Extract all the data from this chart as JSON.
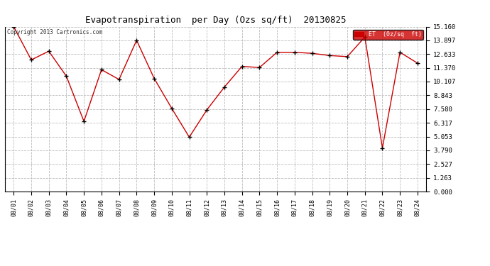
{
  "title": "Evapotranspiration  per Day (Ozs sq/ft)  20130825",
  "copyright": "Copyright 2013 Cartronics.com",
  "legend_label": "ET  (0z/sq  ft)",
  "x_labels": [
    "08/01",
    "08/02",
    "08/03",
    "08/04",
    "08/05",
    "08/06",
    "08/07",
    "08/08",
    "08/09",
    "08/10",
    "08/11",
    "08/12",
    "08/13",
    "08/14",
    "08/15",
    "08/16",
    "08/17",
    "08/18",
    "08/19",
    "08/20",
    "08/21",
    "08/22",
    "08/23",
    "08/24"
  ],
  "y_values": [
    15.16,
    12.1,
    12.9,
    10.6,
    6.45,
    11.2,
    10.3,
    13.9,
    10.4,
    7.65,
    5.0,
    7.5,
    9.6,
    11.5,
    11.4,
    12.8,
    12.8,
    12.7,
    12.5,
    12.4,
    14.2,
    4.0,
    12.8,
    11.8
  ],
  "y_ticks": [
    0.0,
    1.263,
    2.527,
    3.79,
    5.053,
    6.317,
    7.58,
    8.843,
    10.107,
    11.37,
    12.633,
    13.897,
    15.16
  ],
  "line_color": "#cc0000",
  "marker_color": "#000000",
  "bg_color": "#ffffff",
  "grid_color": "#bbbbbb",
  "legend_bg": "#cc0000",
  "legend_text_color": "#ffffff",
  "title_color": "#000000",
  "y_max": 15.16,
  "y_min": 0.0,
  "figwidth": 6.9,
  "figheight": 3.75,
  "dpi": 100
}
